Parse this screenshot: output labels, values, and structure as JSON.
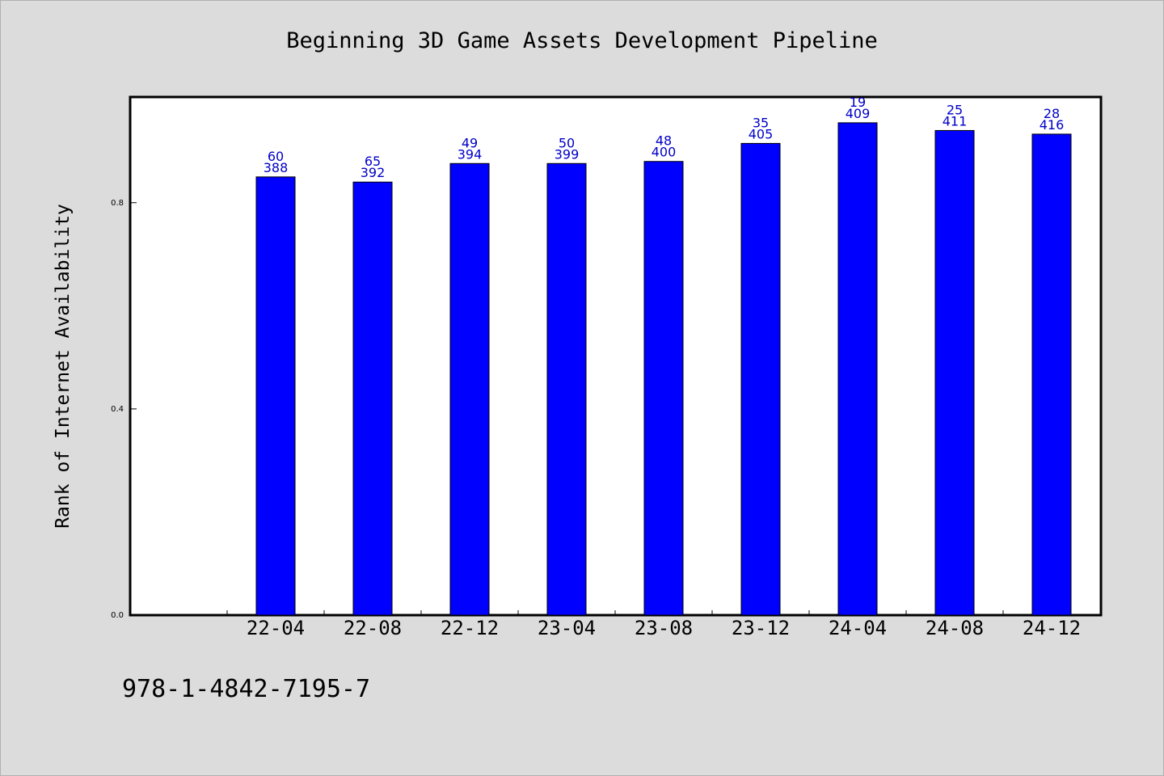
{
  "chart_data": {
    "type": "bar",
    "title": "Beginning 3D Game Assets Development Pipeline",
    "xlabel": "",
    "ylabel": "Rank of Internet Availability",
    "categories": [
      "22-04",
      "22-08",
      "22-12",
      "23-04",
      "23-08",
      "23-12",
      "24-04",
      "24-08",
      "24-12"
    ],
    "values": [
      0.85,
      0.84,
      0.876,
      0.876,
      0.88,
      0.915,
      0.955,
      0.94,
      0.933
    ],
    "labels_top": [
      "60",
      "65",
      "49",
      "50",
      "48",
      "35",
      "19",
      "25",
      "28"
    ],
    "labels_bottom": [
      "388",
      "392",
      "394",
      "399",
      "400",
      "405",
      "409",
      "411",
      "416"
    ],
    "ylim": [
      0,
      1.005
    ],
    "yticks": [
      "0.0",
      "0.4",
      "0.8"
    ],
    "ytick_values": [
      0,
      0.4,
      0.8
    ],
    "grid": false,
    "colors": {
      "bar": "#0000ff",
      "bar_edge": "#000000",
      "label": "#0000c8",
      "background": "#dcdcdc",
      "plot": "#ffffff"
    }
  },
  "footer": {
    "isbn": "978-1-4842-7195-7"
  }
}
